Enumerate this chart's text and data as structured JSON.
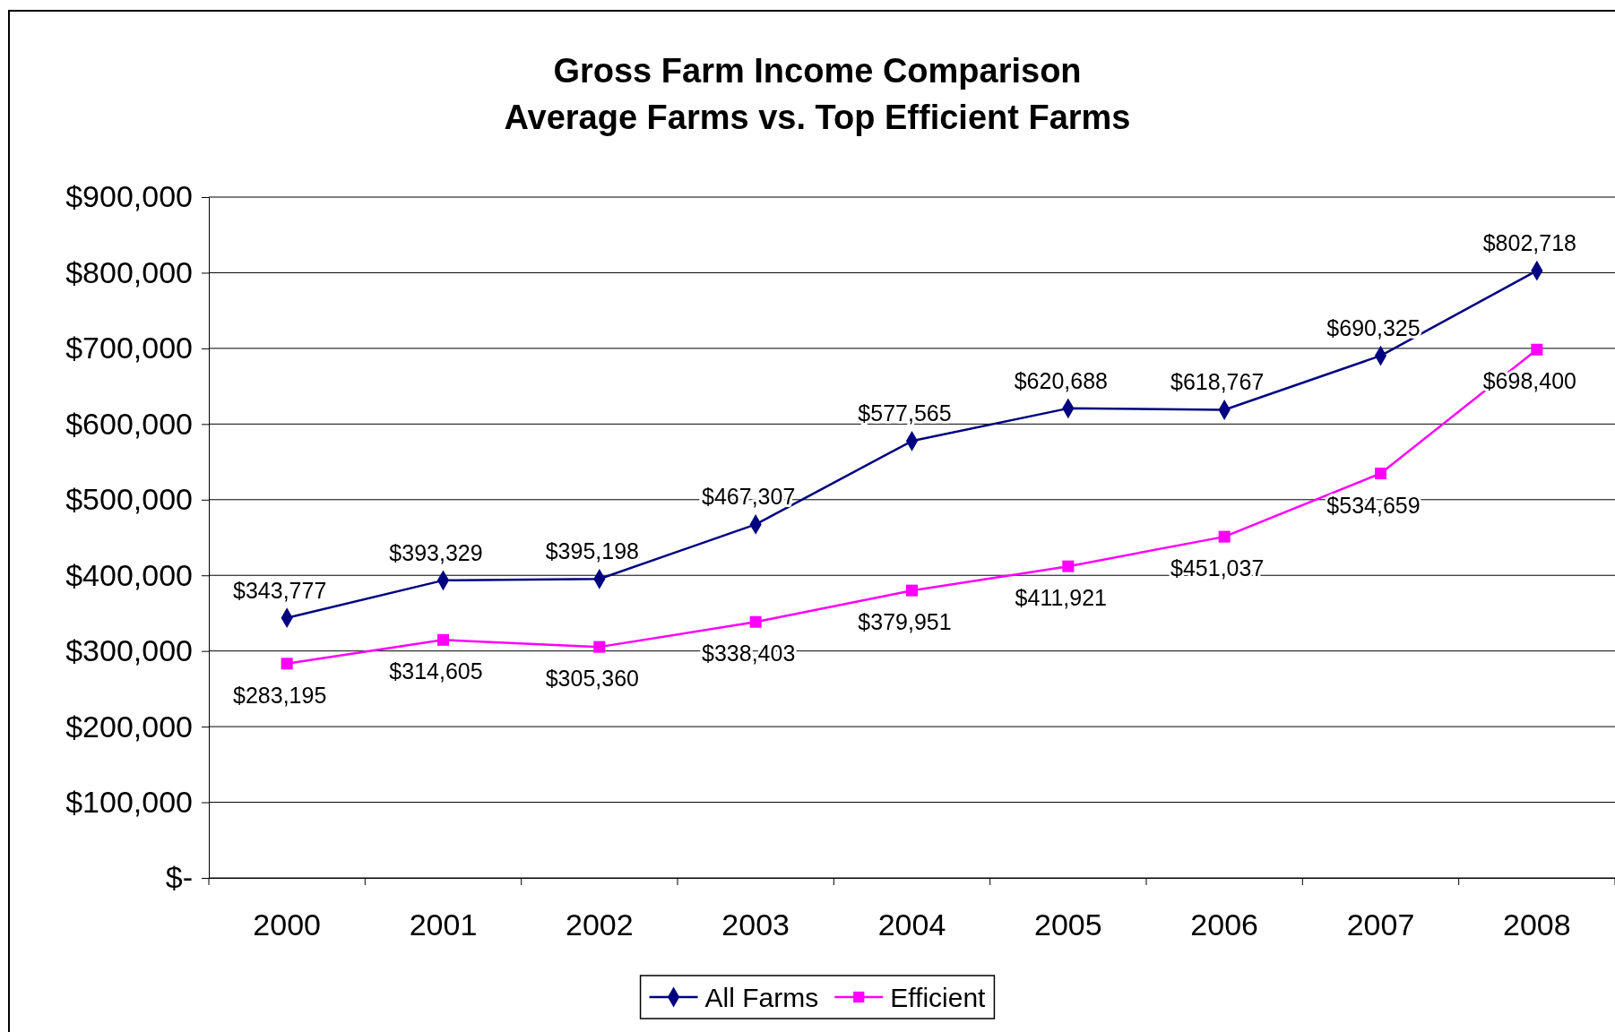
{
  "chart_data": {
    "type": "line",
    "title": "Gross Farm Income Comparison\nAverage Farms vs. Top Efficient Farms",
    "categories": [
      "2000",
      "2001",
      "2002",
      "2003",
      "2004",
      "2005",
      "2006",
      "2007",
      "2008"
    ],
    "series": [
      {
        "name": "All Farms",
        "color": "#000080",
        "marker": "diamond",
        "values": [
          343777,
          393329,
          395198,
          467307,
          577565,
          620688,
          618767,
          690325,
          802718
        ],
        "value_labels": [
          "$343,777",
          "$393,329",
          "$395,198",
          "$467,307",
          "$577,565",
          "$620,688",
          "$618,767",
          "$690,325",
          "$802,718"
        ]
      },
      {
        "name": "Efficient",
        "color": "#ff00ff",
        "marker": "square",
        "values": [
          283195,
          314605,
          305360,
          338403,
          379951,
          411921,
          451037,
          534659,
          698400
        ],
        "value_labels": [
          "$283,195",
          "$314,605",
          "$305,360",
          "$338,403",
          "$379,951",
          "$411,921",
          "$451,037",
          "$534,659",
          "$698,400"
        ]
      }
    ],
    "ylim": [
      0,
      900000
    ],
    "yticks": [
      {
        "value": 0,
        "label": "$-"
      },
      {
        "value": 100000,
        "label": "$100,000"
      },
      {
        "value": 200000,
        "label": "$200,000"
      },
      {
        "value": 300000,
        "label": "$300,000"
      },
      {
        "value": 400000,
        "label": "$400,000"
      },
      {
        "value": 500000,
        "label": "$500,000"
      },
      {
        "value": 600000,
        "label": "$600,000"
      },
      {
        "value": 700000,
        "label": "$700,000"
      },
      {
        "value": 800000,
        "label": "$800,000"
      },
      {
        "value": 900000,
        "label": "$900,000"
      }
    ],
    "grid": "y",
    "legend": "bottom",
    "line_style": "solid"
  }
}
